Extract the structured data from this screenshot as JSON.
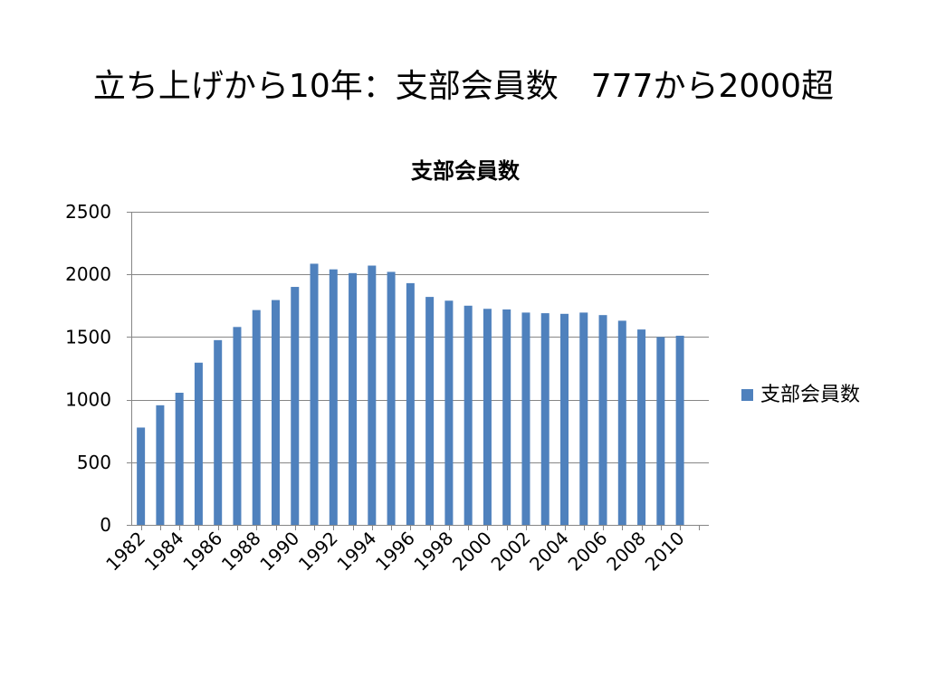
{
  "slide": {
    "title": "立ち上げから10年：支部会員数　777から2000超"
  },
  "colors": {
    "bar": "#4F81BD",
    "gridline": "#868686",
    "axis": "#868686",
    "background": "#FFFFFF"
  },
  "chart_data": {
    "type": "bar",
    "title": "支部会員数",
    "xlabel": "",
    "ylabel": "",
    "categories": [
      "1982",
      "1983",
      "1984",
      "1985",
      "1986",
      "1987",
      "1988",
      "1989",
      "1990",
      "1991",
      "1992",
      "1993",
      "1994",
      "1995",
      "1996",
      "1997",
      "1998",
      "1999",
      "2000",
      "2001",
      "2002",
      "2003",
      "2004",
      "2005",
      "2006",
      "2007",
      "2008",
      "2009",
      "2010"
    ],
    "category_tick_labels": [
      "1982",
      "",
      "1984",
      "",
      "1986",
      "",
      "1988",
      "",
      "1990",
      "",
      "1992",
      "",
      "1994",
      "",
      "1996",
      "",
      "1998",
      "",
      "2000",
      "",
      "2002",
      "",
      "2004",
      "",
      "2006",
      "",
      "2008",
      "",
      "2010"
    ],
    "series": [
      {
        "name": "支部会員数",
        "values": [
          777,
          955,
          1055,
          1295,
          1475,
          1580,
          1715,
          1795,
          1900,
          2085,
          2040,
          2010,
          2070,
          2020,
          1930,
          1820,
          1790,
          1750,
          1725,
          1720,
          1695,
          1690,
          1685,
          1695,
          1675,
          1630,
          1560,
          1500,
          1510
        ]
      }
    ],
    "ylim": [
      0,
      2500
    ],
    "yticks": [
      0,
      500,
      1000,
      1500,
      2000,
      2500
    ],
    "grid": true,
    "legend": "right"
  }
}
